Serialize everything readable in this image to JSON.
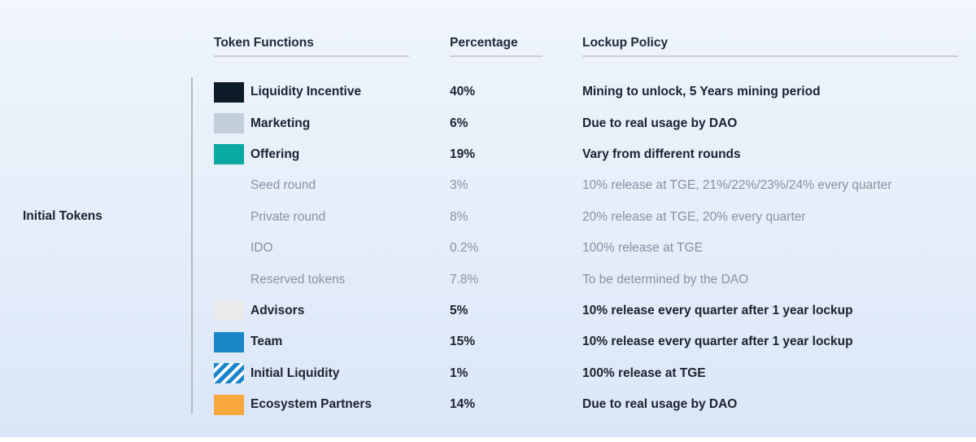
{
  "page": {
    "side_label": "Initial Tokens"
  },
  "table": {
    "headers": [
      {
        "label": "Token Functions"
      },
      {
        "label": "Percentage"
      },
      {
        "label": "Lockup Policy"
      }
    ],
    "rows": [
      {
        "swatch": "#0d1b29",
        "label": "Liquidity Incentive",
        "percentage": "40%",
        "lockup": "Mining to unlock, 5 Years mining period",
        "muted": false
      },
      {
        "swatch": "#c3cedb",
        "label": "Marketing",
        "percentage": "6%",
        "lockup": "Due to real usage by DAO",
        "muted": false
      },
      {
        "swatch": "#0aa9a2",
        "label": "Offering",
        "percentage": "19%",
        "lockup": "Vary from different rounds",
        "muted": false
      },
      {
        "swatch": null,
        "label": "Seed round",
        "percentage": "3%",
        "lockup": "10% release at TGE, 21%/22%/23%/24% every quarter",
        "muted": true
      },
      {
        "swatch": null,
        "label": "Private round",
        "percentage": "8%",
        "lockup": "20% release at TGE, 20% every quarter",
        "muted": true
      },
      {
        "swatch": null,
        "label": "IDO",
        "percentage": "0.2%",
        "lockup": "100% release at TGE",
        "muted": true
      },
      {
        "swatch": null,
        "label": "Reserved tokens",
        "percentage": "7.8%",
        "lockup": "To be determined by the DAO",
        "muted": true
      },
      {
        "swatch": "#e9eae9",
        "label": "Advisors",
        "percentage": "5%",
        "lockup": "10% release every quarter after 1 year lockup",
        "muted": false
      },
      {
        "swatch": "#1987c8",
        "label": "Team",
        "percentage": "15%",
        "lockup": "10% release every quarter after 1 year lockup",
        "muted": false
      },
      {
        "swatch": "striped",
        "label": "Initial Liquidity",
        "percentage": "1%",
        "lockup": "100% release at TGE",
        "muted": false
      },
      {
        "swatch": "#f9a83d",
        "label": "Ecosystem Partners",
        "percentage": "14%",
        "lockup": "Due to real usage by DAO",
        "muted": false
      }
    ]
  },
  "colors": {
    "background_top": "#f3f6fd",
    "background_bottom": "#dae6f8",
    "text": "#1c222e",
    "muted_text": "#8b9198",
    "header_rule": "#cfcecd",
    "bracket_line": "#b6b9bd",
    "stripe_blue": "#1a84cc"
  }
}
